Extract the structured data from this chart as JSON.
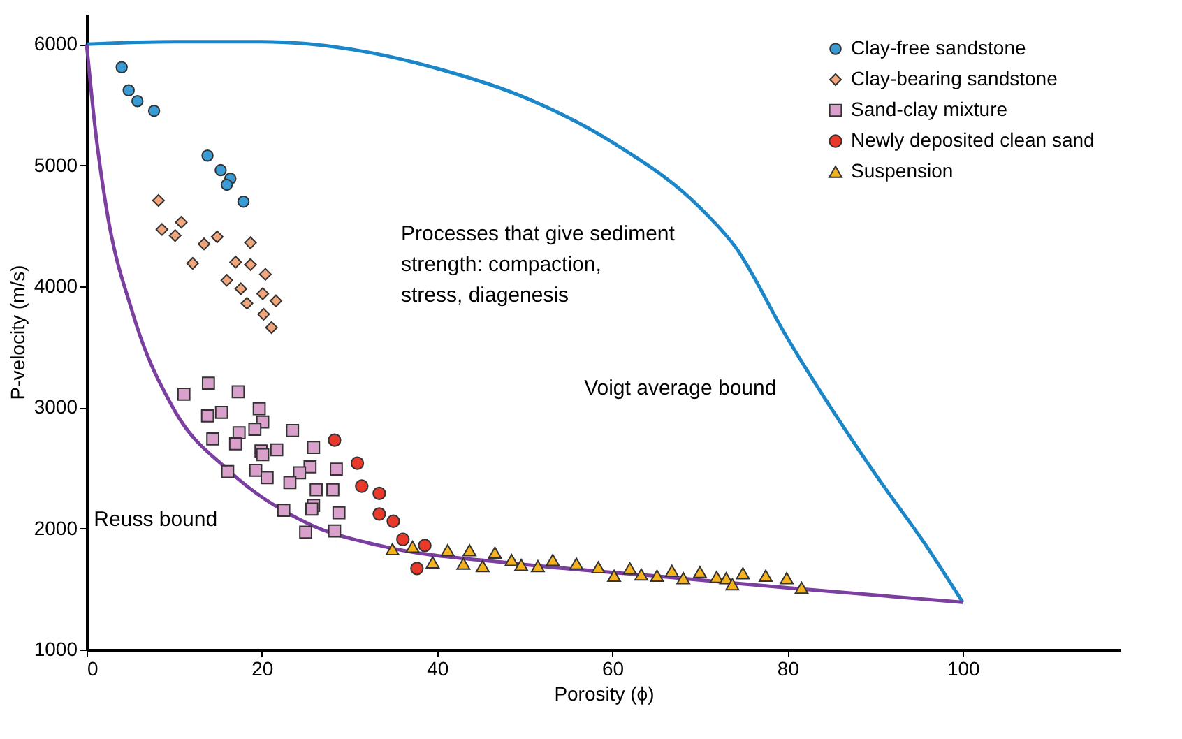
{
  "chart_data": {
    "type": "scatter",
    "xlabel": "Porosity (ϕ)",
    "ylabel": "P-velocity (m/s)",
    "xlim": [
      0,
      118
    ],
    "ylim": [
      1000,
      6250
    ],
    "xticks": [
      0,
      20,
      40,
      60,
      80,
      100
    ],
    "yticks": [
      1000,
      2000,
      3000,
      4000,
      5000,
      6000
    ],
    "grid": false,
    "legend": "top right",
    "series": [
      {
        "name": "Clay-free sandstone",
        "color": "#3a9bd5",
        "marker": "circle",
        "x": [
          4.0,
          4.8,
          5.8,
          7.7,
          13.8,
          15.3,
          16.4,
          16.0,
          17.9
        ],
        "values": [
          5810,
          5620,
          5530,
          5450,
          5080,
          4960,
          4890,
          4840,
          4700
        ]
      },
      {
        "name": "Clay-bearing sandstone",
        "color": "#f0a57a",
        "marker": "diamond",
        "x": [
          8.2,
          8.6,
          10.8,
          10.1,
          13.4,
          14.9,
          18.7,
          12.1,
          17.0,
          18.7,
          20.4,
          16.0,
          17.6,
          20.1,
          21.6,
          18.3,
          20.2,
          21.1
        ],
        "values": [
          4710,
          4470,
          4530,
          4420,
          4350,
          4410,
          4360,
          4190,
          4200,
          4180,
          4100,
          4050,
          3980,
          3940,
          3880,
          3860,
          3770,
          3660
        ]
      },
      {
        "name": "Sand-clay mixture",
        "color": "#d9a0cc",
        "marker": "square",
        "x": [
          11.1,
          13.9,
          17.3,
          13.8,
          15.4,
          19.7,
          20.1,
          19.2,
          17.4,
          14.4,
          17.0,
          23.5,
          19.9,
          20.1,
          21.7,
          25.9,
          25.5,
          28.5,
          19.3,
          16.1,
          20.6,
          24.3,
          23.2,
          26.2,
          28.1,
          25.9,
          25.7,
          22.5,
          28.8,
          25.0,
          28.3
        ],
        "values": [
          3110,
          3200,
          3130,
          2930,
          2960,
          2990,
          2880,
          2820,
          2790,
          2740,
          2700,
          2810,
          2640,
          2610,
          2650,
          2670,
          2510,
          2490,
          2480,
          2470,
          2420,
          2460,
          2380,
          2320,
          2320,
          2190,
          2160,
          2150,
          2130,
          1970,
          1980
        ]
      },
      {
        "name": "Newly deposited clean sand",
        "color": "#e8392a",
        "marker": "circle",
        "x": [
          28.3,
          30.9,
          31.4,
          33.4,
          33.4,
          35.0,
          36.1,
          38.6,
          37.7
        ],
        "values": [
          2730,
          2540,
          2350,
          2290,
          2120,
          2060,
          1910,
          1860,
          1670
        ]
      },
      {
        "name": "Suspension",
        "color": "#f5b21c",
        "marker": "triangle",
        "x": [
          34.9,
          37.2,
          39.5,
          41.2,
          43.0,
          43.7,
          45.2,
          46.6,
          48.5,
          49.6,
          51.5,
          53.2,
          55.9,
          58.4,
          60.2,
          62.0,
          63.3,
          65.1,
          66.8,
          68.1,
          70.0,
          71.9,
          73.0,
          73.7,
          74.9,
          77.5,
          79.9,
          81.6
        ],
        "values": [
          1830,
          1850,
          1720,
          1820,
          1710,
          1820,
          1690,
          1800,
          1740,
          1700,
          1690,
          1740,
          1710,
          1680,
          1610,
          1670,
          1620,
          1610,
          1650,
          1590,
          1640,
          1600,
          1590,
          1540,
          1630,
          1610,
          1590,
          1510
        ]
      },
      {
        "type": "line",
        "color": "#1b86c8",
        "line_style": "solid",
        "x": [
          0,
          10,
          20,
          30,
          40,
          50,
          60,
          70,
          74,
          80,
          90,
          95.8,
          100
        ],
        "values": [
          6000,
          6020,
          6020,
          5960,
          5800,
          5560,
          5190,
          4650,
          4330,
          3570,
          2450,
          1860,
          1390
        ]
      },
      {
        "type": "line",
        "color": "#7b3fa0",
        "line_style": "solid",
        "x": [
          0,
          1,
          2.2,
          5.3,
          10,
          16.2,
          25.6,
          33.4,
          49,
          64.6,
          80,
          100
        ],
        "values": [
          6000,
          5290,
          4670,
          3770,
          2980,
          2480,
          2030,
          1860,
          1710,
          1610,
          1510,
          1390
        ]
      }
    ],
    "annotations": [
      "Processes that give sediment strength: compaction, stress, diagenesis",
      {
        "text": "Voigt average bound",
        "x": 80,
        "y": 3570
      },
      {
        "text": "Reuss bound",
        "x": 16.2,
        "y": 2480
      }
    ]
  }
}
